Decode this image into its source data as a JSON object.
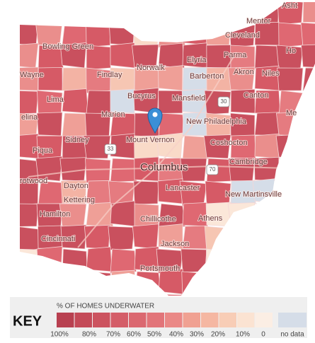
{
  "map": {
    "cities": [
      "Asht",
      "Mentor",
      "Cleveland",
      "Bowling Green",
      "Ho",
      "Parma",
      "Elyria",
      "Norwalk",
      "Wayne",
      "Findlay",
      "Barberton",
      "Akron",
      "Niles",
      "Lima",
      "Bucyrus",
      "Mansfield",
      "Canton",
      "Me",
      "Marion",
      "New Philadelphia",
      "elina",
      "Sidney",
      "Mount Vernon",
      "Coshocton",
      "Piqua",
      "Columbus",
      "Cambridge",
      "rotwood",
      "Dayton",
      "Lancaster",
      "Kettering",
      "New Martinsville",
      "Hamilton",
      "Athens",
      "Chillicothe",
      "Cincinnati",
      "Jackson",
      "Portsmouth"
    ],
    "routes": [
      "30",
      "33",
      "70"
    ],
    "key": {
      "title": "KEY",
      "subtitle": "% OF HOMES UNDERWATER",
      "labels": [
        "100%",
        "80%",
        "70%",
        "60%",
        "50%",
        "40%",
        "30%",
        "20%",
        "10%",
        "0",
        "no data"
      ]
    }
  }
}
